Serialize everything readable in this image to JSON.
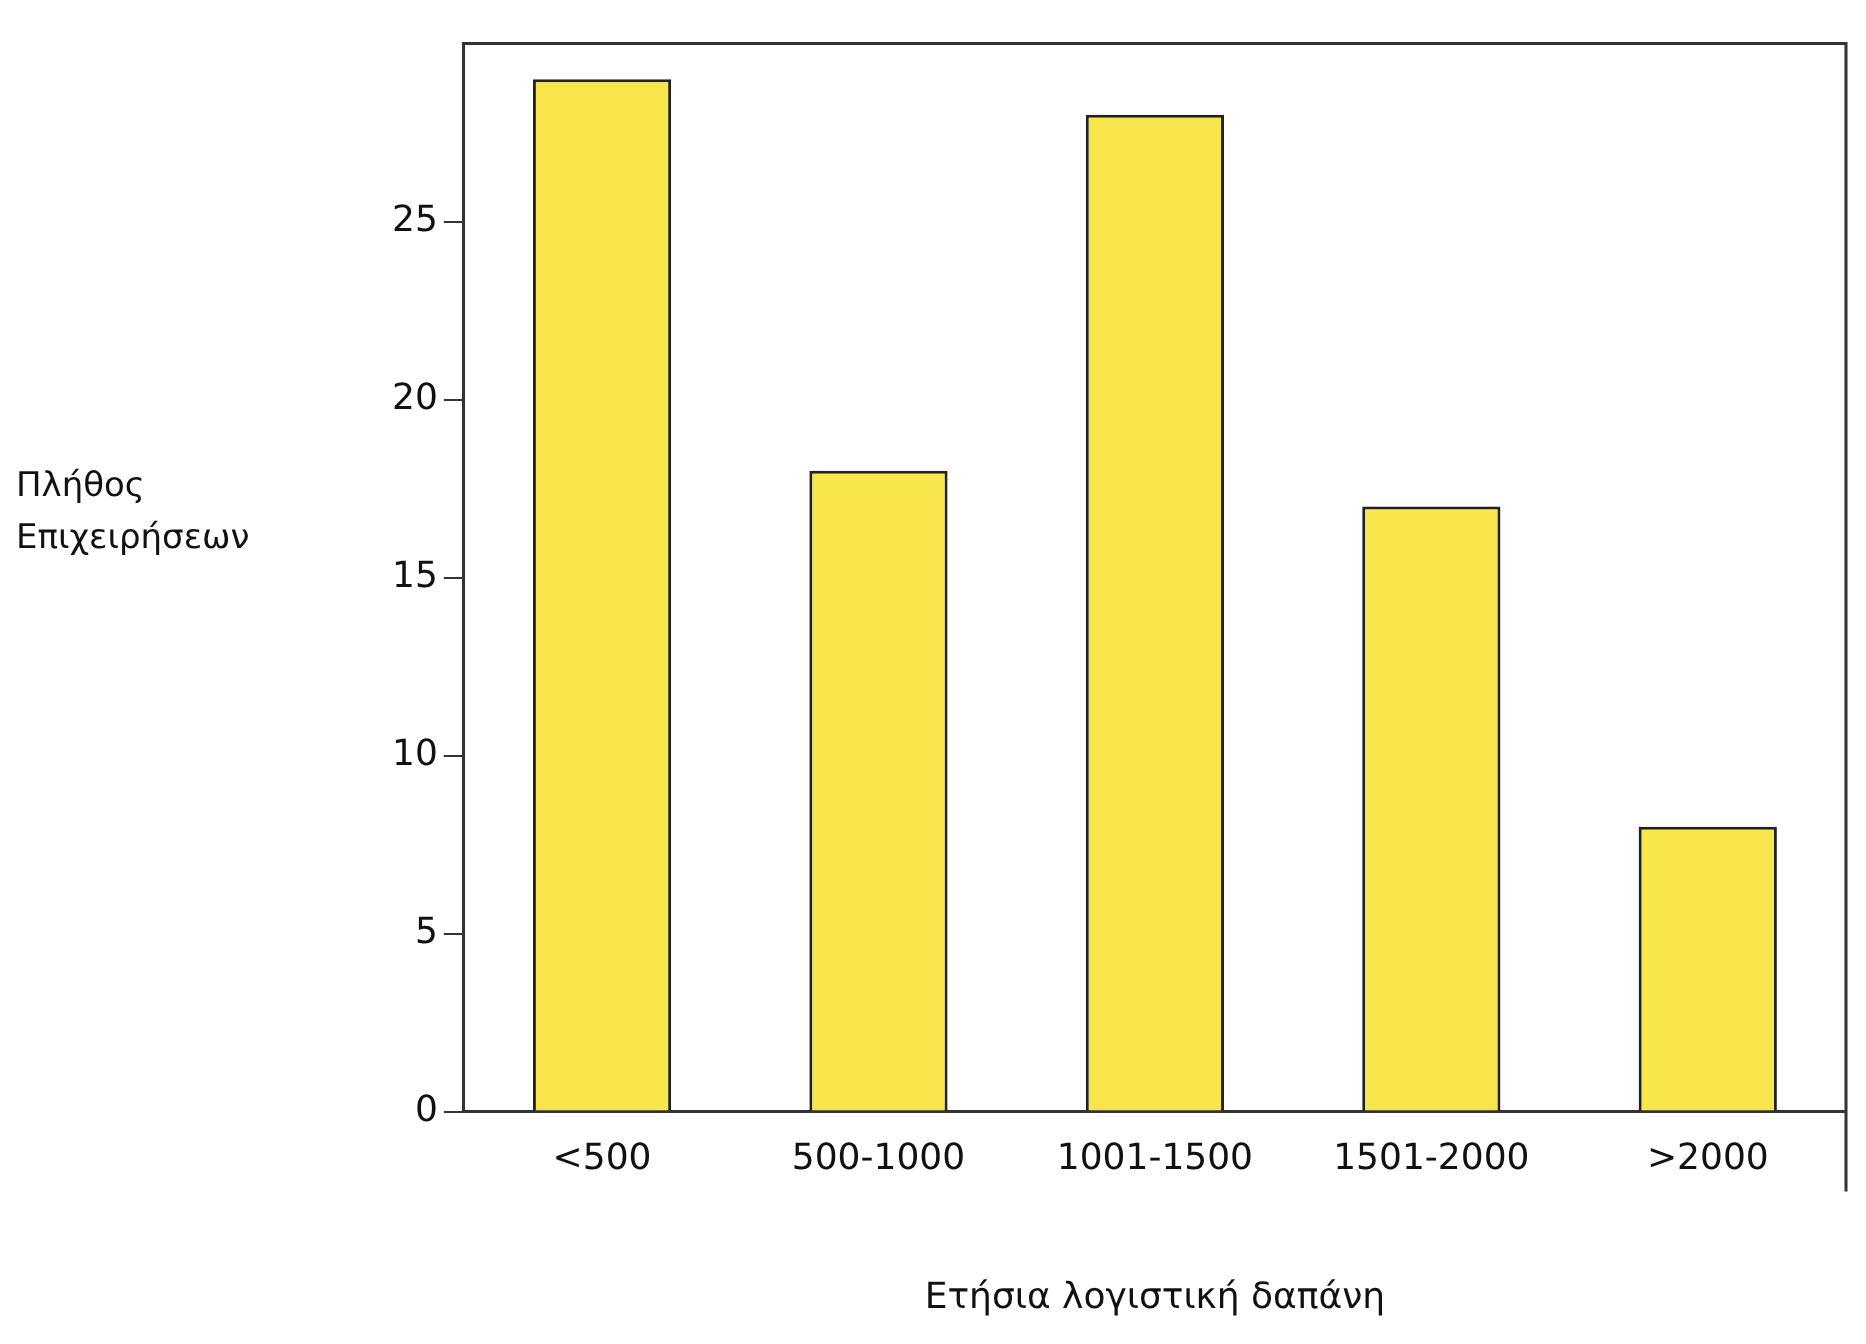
{
  "chart_data": {
    "type": "bar",
    "xlabel": "Ετήσια λογιστική δαπάνη",
    "ylabel": "Πλήθος Επιχειρήσεων",
    "categories": [
      "<500",
      "500-1000",
      "1001-1500",
      "1501-2000",
      ">2000"
    ],
    "values": [
      29,
      18,
      28,
      17,
      8
    ],
    "color": "#f9e54c",
    "ylim": [
      0,
      30
    ],
    "yticks": [
      0,
      5,
      10,
      15,
      20,
      25
    ],
    "grid": false,
    "legend": false
  }
}
